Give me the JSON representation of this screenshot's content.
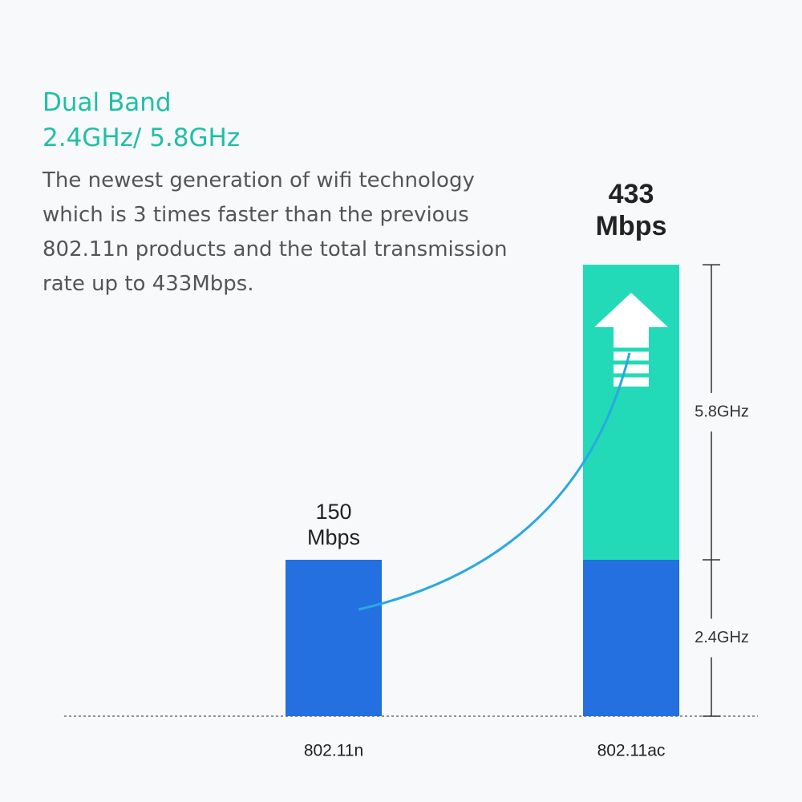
{
  "chart_data": {
    "type": "bar",
    "title": "Dual Band",
    "subtitle": "2.4GHz/ 5.8GHz",
    "description": [
      "The newest generation of wifi technology",
      "which is 3 times faster than the previous",
      "802.11n products and the total transmission",
      "rate up to 433Mbps."
    ],
    "categories": [
      "802.11n",
      "802.11ac"
    ],
    "series": [
      {
        "name": "2.4GHz",
        "color": "#2470e0",
        "values": [
          150,
          150
        ]
      },
      {
        "name": "5.8GHz",
        "color": "#22d9b8",
        "values": [
          null,
          283
        ]
      }
    ],
    "value_labels": [
      "150 Mbps",
      "433 Mbps"
    ]
  }
}
